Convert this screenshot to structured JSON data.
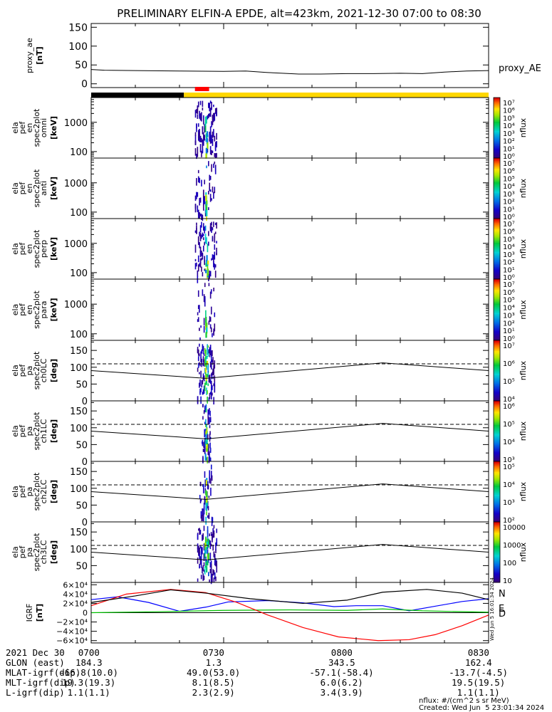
{
  "title": "PRELIMINARY ELFIN-A EPDE, alt=423km, 2021-12-30 07:00 to 08:30",
  "chart_data": [
    {
      "type": "line",
      "panel": "proxy_ae",
      "ylabel": [
        "proxy_ae",
        "[nT]"
      ],
      "legend": "proxy_AE",
      "yticks": [
        "150",
        "100",
        "50",
        "0"
      ],
      "ylim": [
        -10,
        160
      ],
      "x": [
        0,
        3,
        10,
        20,
        30,
        35,
        40,
        47,
        52,
        58,
        64,
        70,
        75,
        80,
        85,
        90
      ],
      "values": [
        38,
        36,
        35,
        34,
        33,
        34,
        30,
        26,
        26,
        27,
        27,
        28,
        27,
        31,
        34,
        35
      ]
    },
    {
      "type": "bar",
      "panel": "science-zone-bar",
      "segments": [
        {
          "x0": 0,
          "x1": 21.0,
          "color": "#000000"
        },
        {
          "x0": 21.0,
          "x1": 90,
          "color": "#ffd700"
        }
      ],
      "red_marker": {
        "x0": 23.5,
        "x1": 26.7,
        "color": "#ff0000"
      }
    },
    {
      "type": "heatmap",
      "panel": "spec-omni",
      "ylabel": [
        "ela",
        "pef",
        "en",
        "spec2plot",
        "omni",
        "[keV]"
      ],
      "yticks": [
        "1000",
        "100"
      ],
      "ylog": true,
      "ylim": [
        60,
        7000
      ],
      "cbar_label": "nflux",
      "cbar_ticks": [
        "10⁷",
        "10⁶",
        "10⁵",
        "10⁴",
        "10³",
        "10²",
        "10¹",
        "10⁰"
      ],
      "activity_x": [
        23.5,
        28.5
      ],
      "core_x": [
        25.7,
        26.2
      ],
      "density": 0.9
    },
    {
      "type": "heatmap",
      "panel": "spec-anti",
      "ylabel": [
        "ela",
        "pef",
        "en",
        "spec2plot",
        "anti",
        "[keV]"
      ],
      "yticks": [
        "1000",
        "100"
      ],
      "ylog": true,
      "ylim": [
        60,
        7000
      ],
      "cbar_label": "nflux",
      "cbar_ticks": [
        "10⁷",
        "10⁶",
        "10⁵",
        "10⁴",
        "10³",
        "10²",
        "10¹",
        "10⁰"
      ],
      "activity_x": [
        23.5,
        28.5
      ],
      "core_x": [
        25.8,
        26.0
      ],
      "density": 0.35
    },
    {
      "type": "heatmap",
      "panel": "spec-perp",
      "ylabel": [
        "ela",
        "pef",
        "en",
        "spec2plot",
        "perp",
        "[keV]"
      ],
      "yticks": [
        "1000",
        "100"
      ],
      "ylog": true,
      "ylim": [
        60,
        7000
      ],
      "cbar_label": "nflux",
      "cbar_ticks": [
        "10⁷",
        "10⁶",
        "10⁵",
        "10⁴",
        "10³",
        "10²",
        "10¹",
        "10⁰"
      ],
      "activity_x": [
        23.5,
        28.5
      ],
      "core_x": [
        25.6,
        26.3
      ],
      "density": 0.8
    },
    {
      "type": "heatmap",
      "panel": "spec-para",
      "ylabel": [
        "ela",
        "pef",
        "en",
        "spec2plot",
        "para",
        "[keV]"
      ],
      "yticks": [
        "1000",
        "100"
      ],
      "ylog": true,
      "ylim": [
        60,
        7000
      ],
      "cbar_label": "nflux",
      "cbar_ticks": [
        "10⁷",
        "10⁶",
        "10⁵",
        "10⁴",
        "10³",
        "10²",
        "10¹",
        "10⁰"
      ],
      "activity_x": [
        24.0,
        28.0
      ],
      "core_x": [
        25.8,
        26.0
      ],
      "density": 0.3
    },
    {
      "type": "heatmap",
      "panel": "pa-ch0",
      "ylabel": [
        "ela",
        "pef",
        "pa",
        "spec2plot",
        "ch0LC",
        "[deg]"
      ],
      "yticks": [
        "150",
        "100",
        "50",
        "0"
      ],
      "ylim": [
        0,
        180
      ],
      "cbar_label": "nflux",
      "cbar_ticks": [
        "10⁷",
        "10⁶",
        "10⁵",
        "10⁴"
      ],
      "activity_x": [
        24.0,
        28.0
      ],
      "core_x": [
        25.5,
        26.5
      ],
      "density": 0.9,
      "dashed_y": 110,
      "lc_line": {
        "x": [
          0,
          26,
          66,
          90
        ],
        "values": [
          90,
          67,
          113,
          90
        ]
      }
    },
    {
      "type": "heatmap",
      "panel": "pa-ch1",
      "ylabel": [
        "ela",
        "pef",
        "pa",
        "spec2plot",
        "ch1LC",
        "[deg]"
      ],
      "yticks": [
        "150",
        "100",
        "50",
        "0"
      ],
      "ylim": [
        0,
        180
      ],
      "cbar_label": "nflux",
      "cbar_ticks": [
        "10⁶",
        "10⁵",
        "10⁴",
        "10³"
      ],
      "activity_x": [
        25.0,
        27.0
      ],
      "core_x": [
        25.7,
        26.2
      ],
      "density": 0.6,
      "dashed_y": 110,
      "lc_line": {
        "x": [
          0,
          26,
          66,
          90
        ],
        "values": [
          90,
          67,
          113,
          90
        ]
      }
    },
    {
      "type": "heatmap",
      "panel": "pa-ch2",
      "ylabel": [
        "ela",
        "pef",
        "pa",
        "spec2plot",
        "ch2LC",
        "[deg]"
      ],
      "yticks": [
        "150",
        "100",
        "50",
        "0"
      ],
      "ylim": [
        0,
        180
      ],
      "cbar_label": "nflux",
      "cbar_ticks": [
        "10⁵",
        "10⁴",
        "10³",
        "10²"
      ],
      "activity_x": [
        24.5,
        27.5
      ],
      "core_x": [
        25.8,
        26.1
      ],
      "density": 0.35,
      "dashed_y": 110,
      "lc_line": {
        "x": [
          0,
          26,
          66,
          90
        ],
        "values": [
          90,
          67,
          113,
          90
        ]
      }
    },
    {
      "type": "heatmap",
      "panel": "pa-ch3",
      "ylabel": [
        "ela",
        "pef",
        "pa",
        "spec2plot",
        "ch3LC",
        "[deg]"
      ],
      "yticks": [
        "150",
        "100",
        "50"
      ],
      "ylim": [
        0,
        180
      ],
      "cbar_label": "nflux",
      "cbar_ticks": [
        "10000",
        "1000",
        "100",
        "10"
      ],
      "activity_x": [
        24.0,
        28.5
      ],
      "core_x": [
        25.5,
        26.5
      ],
      "density": 0.9,
      "dashed_y": 110,
      "lc_line": {
        "x": [
          0,
          26,
          66,
          90
        ],
        "values": [
          90,
          67,
          113,
          90
        ]
      }
    },
    {
      "type": "line",
      "panel": "igrf",
      "ylabel": [
        "IGRF",
        "[nT]"
      ],
      "yticks": [
        "6×10⁴",
        "4×10⁴",
        "2×10⁴",
        "0",
        "−2×10⁴",
        "−4×10⁴",
        "−6×10⁴"
      ],
      "ylim": [
        -65000,
        65000
      ],
      "series": [
        {
          "name": "N",
          "color": "#0000ff",
          "x": [
            0,
            6,
            13,
            20,
            26,
            31,
            40,
            48,
            55,
            60,
            66,
            72,
            78,
            84,
            90
          ],
          "values": [
            28000,
            34000,
            22000,
            3000,
            12000,
            23000,
            26000,
            21000,
            13000,
            15000,
            15000,
            4000,
            14000,
            24000,
            30000
          ]
        },
        {
          "name": "E",
          "color": "#00c000",
          "x": [
            0,
            15,
            30,
            45,
            58,
            66,
            75,
            90
          ],
          "values": [
            0,
            2000,
            5000,
            6000,
            5000,
            8000,
            4000,
            1000
          ]
        },
        {
          "name": "D",
          "color": "#ff0000",
          "x": [
            0,
            8,
            18,
            26,
            33,
            40,
            48,
            56,
            65,
            72,
            78,
            84,
            90
          ],
          "values": [
            15000,
            40000,
            50000,
            43000,
            22000,
            -5000,
            -32000,
            -52000,
            -60000,
            -58000,
            -47000,
            -28000,
            -5000
          ]
        },
        {
          "name": "",
          "color": "#000000",
          "x": [
            0,
            10,
            18,
            26,
            36,
            48,
            58,
            66,
            76,
            84,
            90
          ],
          "values": [
            22000,
            36000,
            49000,
            42000,
            30000,
            20000,
            27000,
            44000,
            50000,
            42000,
            28000
          ]
        }
      ],
      "legend": [
        "N",
        "E",
        "D"
      ],
      "vertical_text": "Wed Jun  5 16:01:34 2024"
    }
  ],
  "x_axis": {
    "range": [
      0,
      90
    ],
    "major_ticks": [
      0,
      30,
      60,
      90
    ],
    "tick_labels": [
      "0700",
      "0730",
      "0800",
      "0830"
    ]
  },
  "footer": {
    "rows": [
      {
        "label": "2021 Dec 30",
        "values": [
          "0700",
          "0730",
          "0800",
          "0830"
        ]
      },
      {
        "label": "GLON (east)",
        "values": [
          "184.3",
          "1.3",
          "343.5",
          "162.4"
        ]
      },
      {
        "label": "MLAT-igrf(dip)",
        "values": [
          "-66.8(10.0)",
          "49.0(53.0)",
          "-57.1(-58.4)",
          "-13.7(-4.5)"
        ]
      },
      {
        "label": "MLT-igrf(dip)",
        "values": [
          "19.3(19.3)",
          "8.1(8.5)",
          "6.0(6.2)",
          "19.5(19.5)"
        ]
      },
      {
        "label": "L-igrf(dip)",
        "values": [
          "1.1(1.1)",
          "2.3(2.9)",
          "3.4(3.9)",
          "1.1(1.1)"
        ]
      }
    ],
    "units_note": "nflux: #/(cm^2 s sr MeV)",
    "created": "Created: Wed Jun  5 23:01:34 2024"
  }
}
